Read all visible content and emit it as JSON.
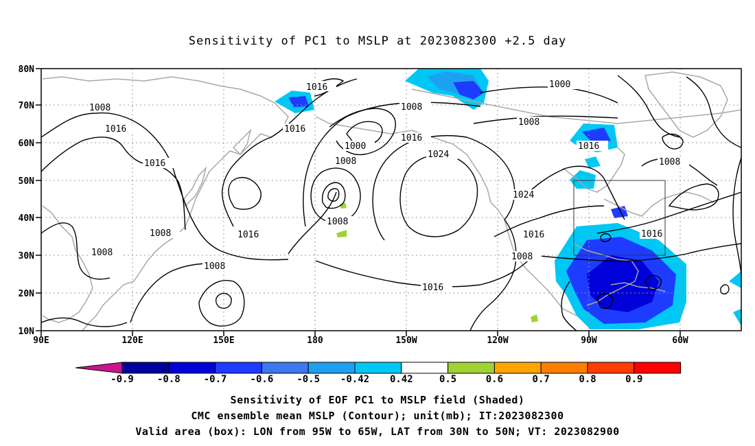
{
  "title": "Sensitivity of PC1 to MSLP at 2023082300 +2.5 day",
  "map": {
    "lat_labels": [
      "80N",
      "70N",
      "60N",
      "50N",
      "40N",
      "30N",
      "20N",
      "10N"
    ],
    "lon_labels": [
      "90E",
      "120E",
      "150E",
      "180",
      "150W",
      "120W",
      "90W",
      "60W"
    ],
    "valid_box": {
      "lon": [
        "95W",
        "65W"
      ],
      "lat": [
        "30N",
        "50N"
      ]
    }
  },
  "contour_labels": [
    {
      "text": "1016"
    },
    {
      "text": "1008"
    },
    {
      "text": "1016"
    },
    {
      "text": "1016"
    },
    {
      "text": "1000"
    },
    {
      "text": "1008"
    },
    {
      "text": "1016"
    },
    {
      "text": "1024"
    },
    {
      "text": "1008"
    },
    {
      "text": "1008"
    },
    {
      "text": "1016"
    },
    {
      "text": "1008"
    },
    {
      "text": "1016"
    },
    {
      "text": "1008"
    },
    {
      "text": "1008"
    },
    {
      "text": "1016"
    },
    {
      "text": "1024"
    },
    {
      "text": "1016"
    },
    {
      "text": "1008"
    },
    {
      "text": "1016"
    },
    {
      "text": "1008"
    },
    {
      "text": "1000"
    },
    {
      "text": "1016"
    },
    {
      "text": "1008"
    }
  ],
  "colorbar": {
    "labels": [
      "-0.9",
      "-0.8",
      "-0.7",
      "-0.6",
      "-0.5",
      "-0.42",
      "0.42",
      "0.5",
      "0.6",
      "0.7",
      "0.8",
      "0.9"
    ],
    "colors": {
      "left_tri": "#c8168c",
      "bins": [
        "#00009e",
        "#0000d8",
        "#1e3cff",
        "#3c78f0",
        "#1ea0f0",
        "#00c8f5",
        "#ffffff",
        "#a0d232",
        "#ffa500",
        "#ff7f00",
        "#ff3c00",
        "#ff0000"
      ],
      "right_tri": "#f5a0c8"
    }
  },
  "footer": {
    "line1": "Sensitivity of EOF PC1 to MSLP field (Shaded)",
    "line2": "CMC ensemble mean MSLP (Contour); unit(mb); IT:2023082300",
    "line3": "Valid area (box): LON from 95W to 65W, LAT from 30N to 50N; VT: 2023082900"
  }
}
